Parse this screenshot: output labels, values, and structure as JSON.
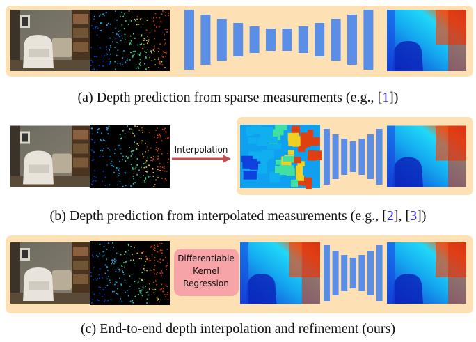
{
  "panels": [
    {
      "caption": [
        "(a) Depth prediction from sparse measurements (e.g., [",
        "1",
        "])"
      ]
    },
    {
      "caption": [
        "(b) Depth prediction from interpolated measurements (e.g., [",
        "2",
        "], [",
        "3",
        "])"
      ],
      "step": "Interpolation"
    },
    {
      "caption": [
        "(c) End-to-end depth interpolation and refinement (ours)"
      ],
      "step": [
        "Differentiable",
        "Kernel",
        "Regression"
      ]
    }
  ]
}
